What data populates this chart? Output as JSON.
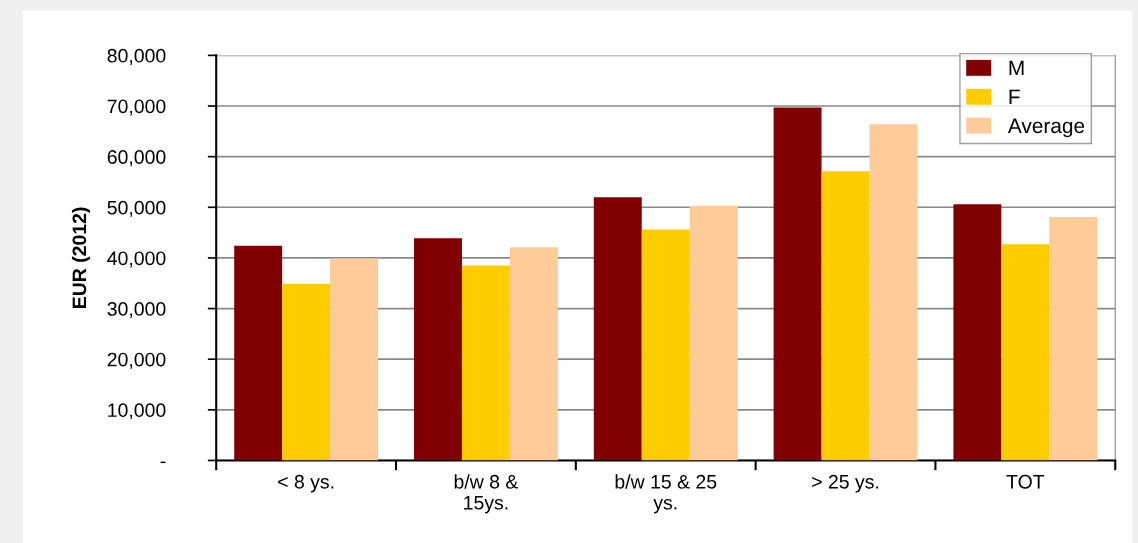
{
  "chart_data": {
    "type": "bar",
    "ylabel": "EUR (2012)",
    "categories": [
      "< 8 ys.",
      "b/w 8 &\n15ys.",
      "b/w 15 & 25\nys.",
      "> 25 ys.",
      "TOT"
    ],
    "series": [
      {
        "name": "M",
        "color": "#800000",
        "values": [
          42400,
          43900,
          52000,
          69700,
          50600
        ]
      },
      {
        "name": "F",
        "color": "#ffcc00",
        "values": [
          34900,
          38500,
          45600,
          57100,
          42700
        ]
      },
      {
        "name": "Average",
        "color": "#ffcc99",
        "values": [
          39900,
          42100,
          50300,
          66400,
          48100
        ]
      }
    ],
    "ylim": [
      0,
      80000
    ],
    "yticks": [
      {
        "value": 0,
        "label": "-"
      },
      {
        "value": 10000,
        "label": "10,000"
      },
      {
        "value": 20000,
        "label": "20,000"
      },
      {
        "value": 30000,
        "label": "30,000"
      },
      {
        "value": 40000,
        "label": "40,000"
      },
      {
        "value": 50000,
        "label": "50,000"
      },
      {
        "value": 60000,
        "label": "60,000"
      },
      {
        "value": 70000,
        "label": "70,000"
      },
      {
        "value": 80000,
        "label": "80,000"
      }
    ],
    "grid": "y",
    "legend": "top right"
  }
}
